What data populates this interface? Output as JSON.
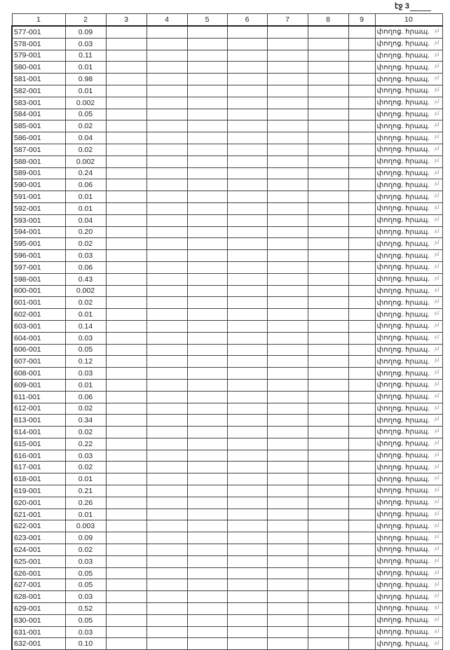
{
  "page_label": "էջ 3",
  "columns": [
    "1",
    "2",
    "3",
    "4",
    "5",
    "6",
    "7",
    "8",
    "9",
    "10"
  ],
  "col10_text": "փողոց. հրապ.",
  "margin_mark": "յմ",
  "rows": [
    [
      "577-001",
      "0.09"
    ],
    [
      "578-001",
      "0.03"
    ],
    [
      "579-001",
      "0.11"
    ],
    [
      "580-001",
      "0.01"
    ],
    [
      "581-001",
      "0.98"
    ],
    [
      "582-001",
      "0.01"
    ],
    [
      "583-001",
      "0.002"
    ],
    [
      "584-001",
      "0.05"
    ],
    [
      "585-001",
      "0.02"
    ],
    [
      "586-001",
      "0.04"
    ],
    [
      "587-001",
      "0.02"
    ],
    [
      "588-001",
      "0.002"
    ],
    [
      "589-001",
      "0.24"
    ],
    [
      "590-001",
      "0.06"
    ],
    [
      "591-001",
      "0.01"
    ],
    [
      "592-001",
      "0.01"
    ],
    [
      "593-001",
      "0.04"
    ],
    [
      "594-001",
      "0.20"
    ],
    [
      "595-001",
      "0.02"
    ],
    [
      "596-001",
      "0.03"
    ],
    [
      "597-001",
      "0.06"
    ],
    [
      "598-001",
      "0.43"
    ],
    [
      "600-001",
      "0.002"
    ],
    [
      "601-001",
      "0.02"
    ],
    [
      "602-001",
      "0.01"
    ],
    [
      "603-001",
      "0.14"
    ],
    [
      "604-001",
      "0.03"
    ],
    [
      "606-001",
      "0.05"
    ],
    [
      "607-001",
      "0.12"
    ],
    [
      "608-001",
      "0.03"
    ],
    [
      "609-001",
      "0.01"
    ],
    [
      "611-001",
      "0.06"
    ],
    [
      "612-001",
      "0.02"
    ],
    [
      "613-001",
      "0.34"
    ],
    [
      "614-001",
      "0.02"
    ],
    [
      "615-001",
      "0.22"
    ],
    [
      "616-001",
      "0.03"
    ],
    [
      "617-001",
      "0.02"
    ],
    [
      "618-001",
      "0.01"
    ],
    [
      "619-001",
      "0.21"
    ],
    [
      "620-001",
      "0.26"
    ],
    [
      "621-001",
      "0.01"
    ],
    [
      "622-001",
      "0.003"
    ],
    [
      "623-001",
      "0.09"
    ],
    [
      "624-001",
      "0.02"
    ],
    [
      "625-001",
      "0.03"
    ],
    [
      "626-001",
      "0.05"
    ],
    [
      "627-001",
      "0.05"
    ],
    [
      "628-001",
      "0.03"
    ],
    [
      "629-001",
      "0.52"
    ],
    [
      "630-001",
      "0.05"
    ],
    [
      "631-001",
      "0.03"
    ],
    [
      "632-001",
      "0.10"
    ]
  ]
}
